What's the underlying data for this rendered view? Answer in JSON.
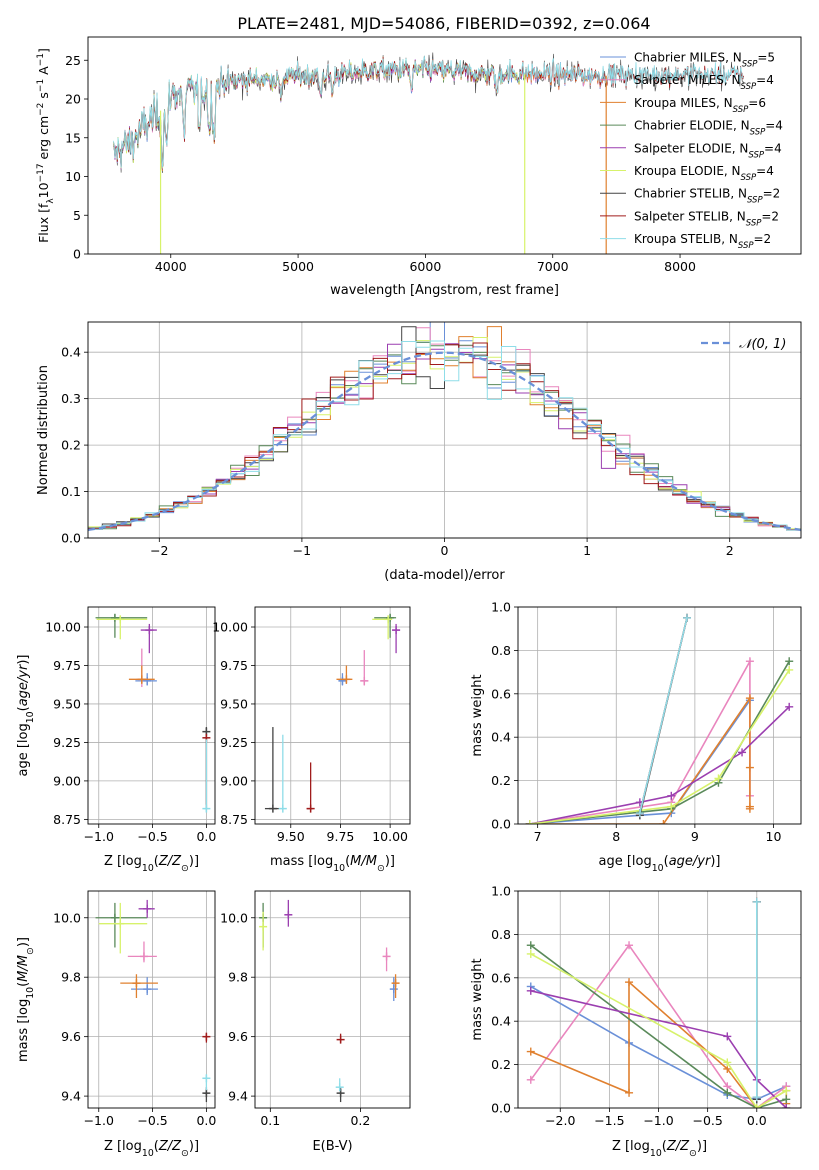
{
  "figure_title": "PLATE=2481, MJD=54086, FIBERID=0392, z=0.064",
  "colors": {
    "chabrier_miles": "#6a90d8",
    "salpeter_miles": "#e986be",
    "kroupa_miles": "#e0802f",
    "chabrier_elodie": "#5a8a5a",
    "salpeter_elodie": "#9b3fb0",
    "kroupa_elodie": "#d7f26b",
    "chabrier_stelib": "#444444",
    "salpeter_stelib": "#a01c1c",
    "kroupa_stelib": "#8fdde8",
    "normal_curve": "#6a90d8",
    "grid": "#b0b0b0"
  },
  "chart_data": [
    {
      "id": "spectrum",
      "type": "line",
      "title": "",
      "xlabel": "wavelength [Angstrom, rest frame]",
      "ylabel": "Flux [f_λ 10^-17 erg cm^-2 s^-1 A^-1]",
      "xlim": [
        3350,
        8950
      ],
      "ylim": [
        0,
        28
      ],
      "xticks": [
        4000,
        5000,
        6000,
        7000,
        8000
      ],
      "yticks": [
        0,
        5,
        10,
        15,
        20,
        25
      ],
      "grid": false,
      "legend_position": "right",
      "legend": [
        {
          "model": "Chabrier MILES",
          "n_ssp": 5,
          "color_key": "chabrier_miles"
        },
        {
          "model": "Salpeter MILES",
          "n_ssp": 4,
          "color_key": "salpeter_miles"
        },
        {
          "model": "Kroupa MILES",
          "n_ssp": 6,
          "color_key": "kroupa_miles"
        },
        {
          "model": "Chabrier ELODIE",
          "n_ssp": 4,
          "color_key": "chabrier_elodie"
        },
        {
          "model": "Salpeter ELODIE",
          "n_ssp": 4,
          "color_key": "salpeter_elodie"
        },
        {
          "model": "Kroupa ELODIE",
          "n_ssp": 4,
          "color_key": "kroupa_elodie"
        },
        {
          "model": "Chabrier STELIB",
          "n_ssp": 2,
          "color_key": "chabrier_stelib"
        },
        {
          "model": "Salpeter STELIB",
          "n_ssp": 2,
          "color_key": "salpeter_stelib"
        },
        {
          "model": "Kroupa STELIB",
          "n_ssp": 2,
          "color_key": "kroupa_stelib"
        }
      ],
      "continuum": {
        "x": [
          3550,
          3600,
          3700,
          3800,
          3900,
          4000,
          4100,
          4200,
          4400,
          4600,
          4800,
          5000,
          5200,
          5500,
          5800,
          6000,
          6200,
          6400,
          6600,
          6800,
          7000,
          7200,
          7400,
          7600,
          7800,
          8000,
          8200,
          8400,
          8600,
          8800
        ],
        "y": [
          12.5,
          13.5,
          14.5,
          16.5,
          18,
          20.5,
          21,
          21,
          22,
          22.5,
          22.5,
          23,
          23,
          23.5,
          23.8,
          23.7,
          23.5,
          23.3,
          23.2,
          23.2,
          23.2,
          23,
          23,
          23,
          23,
          23,
          23,
          23,
          23,
          23
        ]
      },
      "absorption_lines_x": [
        3934,
        3969,
        4102,
        4227,
        4304,
        4340,
        4861,
        5175,
        5270,
        5890,
        6563
      ]
    },
    {
      "id": "residual_hist",
      "type": "histogram",
      "xlabel": "(data-model)/error",
      "ylabel": "Normed distribution",
      "xlim": [
        -2.5,
        2.5
      ],
      "ylim": [
        0,
        0.465
      ],
      "xticks": [
        -2,
        -1,
        0,
        1,
        2
      ],
      "yticks": [
        0.0,
        0.1,
        0.2,
        0.3,
        0.4
      ],
      "grid": true,
      "legend_position": "top-right",
      "normal_label": "𝒩(0, 1)",
      "bin_width": 0.1
    },
    {
      "id": "age_vs_Z",
      "type": "scatter",
      "xlabel": "Z [log10(Z/Z⊙)]",
      "ylabel": "age  [log10(age/yr)]",
      "xlim": [
        -1.1,
        0.08
      ],
      "ylim": [
        8.72,
        10.13
      ],
      "xticks": [
        -1.0,
        -0.5,
        0.0
      ],
      "yticks": [
        8.75,
        9.0,
        9.25,
        9.5,
        9.75,
        10.0
      ],
      "grid": true,
      "points": [
        {
          "m": "chabrier_miles",
          "x": -0.55,
          "y": 9.65,
          "dx": [
            0.11,
            0.09
          ],
          "dy": [
            0.03,
            0.05
          ]
        },
        {
          "m": "salpeter_miles",
          "x": -0.6,
          "y": 9.66,
          "dx": [
            0.05,
            0.05
          ],
          "dy": [
            0.05,
            0.2
          ]
        },
        {
          "m": "kroupa_miles",
          "x": -0.6,
          "y": 9.66,
          "dx": [
            0.12,
            0.12
          ],
          "dy": [
            0.03,
            0.09
          ]
        },
        {
          "m": "chabrier_elodie",
          "x": -0.85,
          "y": 10.06,
          "dx": [
            0.18,
            0.3
          ],
          "dy": [
            0.13,
            0.02
          ]
        },
        {
          "m": "salpeter_elodie",
          "x": -0.53,
          "y": 9.98,
          "dx": [
            0.08,
            0.07
          ],
          "dy": [
            0.15,
            0.04
          ]
        },
        {
          "m": "kroupa_elodie",
          "x": -0.8,
          "y": 10.05,
          "dx": [
            0.22,
            0.25
          ],
          "dy": [
            0.13,
            0.02
          ]
        },
        {
          "m": "chabrier_stelib",
          "x": 0.0,
          "y": 9.32,
          "dx": [
            0,
            0
          ],
          "dy": [
            0.5,
            0.03
          ]
        },
        {
          "m": "salpeter_stelib",
          "x": 0.0,
          "y": 9.28,
          "dx": [
            0,
            0
          ],
          "dy": [
            0.46,
            0.01
          ]
        },
        {
          "m": "kroupa_stelib",
          "x": 0.0,
          "y": 8.82,
          "dx": [
            0.02,
            0.02
          ],
          "dy": [
            0.02,
            0.45
          ]
        }
      ]
    },
    {
      "id": "age_vs_mass",
      "type": "scatter",
      "xlabel": "mass [log10(M/M⊙)]",
      "ylabel": "",
      "xlim": [
        9.32,
        10.1
      ],
      "ylim": [
        8.72,
        10.13
      ],
      "xticks": [
        9.5,
        9.75,
        10.0
      ],
      "yticks": [
        8.75,
        9.0,
        9.25,
        9.5,
        9.75,
        10.0
      ],
      "grid": true,
      "points": [
        {
          "m": "chabrier_miles",
          "x": 9.76,
          "y": 9.65,
          "dx": [
            0.02,
            0.02
          ],
          "dy": [
            0.03,
            0.05
          ]
        },
        {
          "m": "salpeter_miles",
          "x": 9.87,
          "y": 9.65,
          "dx": [
            0.02,
            0.02
          ],
          "dy": [
            0.03,
            0.2
          ]
        },
        {
          "m": "kroupa_miles",
          "x": 9.78,
          "y": 9.66,
          "dx": [
            0.05,
            0.03
          ],
          "dy": [
            0.03,
            0.09
          ]
        },
        {
          "m": "chabrier_elodie",
          "x": 10.0,
          "y": 10.06,
          "dx": [
            0.08,
            0.03
          ],
          "dy": [
            0.13,
            0.02
          ]
        },
        {
          "m": "salpeter_elodie",
          "x": 10.03,
          "y": 9.98,
          "dx": [
            0.02,
            0.02
          ],
          "dy": [
            0.15,
            0.04
          ]
        },
        {
          "m": "kroupa_elodie",
          "x": 9.99,
          "y": 10.05,
          "dx": [
            0.08,
            0.02
          ],
          "dy": [
            0.13,
            0.02
          ]
        },
        {
          "m": "chabrier_stelib",
          "x": 9.41,
          "y": 8.82,
          "dx": [
            0.04,
            0.03
          ],
          "dy": [
            0.01,
            0.53
          ]
        },
        {
          "m": "salpeter_stelib",
          "x": 9.6,
          "y": 8.82,
          "dx": [
            0.02,
            0.01
          ],
          "dy": [
            0.01,
            0.3
          ]
        },
        {
          "m": "kroupa_stelib",
          "x": 9.46,
          "y": 8.82,
          "dx": [
            0,
            0
          ],
          "dy": [
            0.01,
            0.48
          ]
        }
      ]
    },
    {
      "id": "mass_weight_vs_age",
      "type": "line",
      "xlabel": "age  [log10(age/yr)]",
      "ylabel": "mass weight",
      "xlim": [
        6.75,
        10.35
      ],
      "ylim": [
        0,
        1
      ],
      "xticks": [
        7,
        8,
        9,
        10
      ],
      "yticks": [
        0.0,
        0.2,
        0.4,
        0.6,
        0.8,
        1.0
      ],
      "grid": true,
      "series": [
        {
          "m": "chabrier_miles",
          "x": [
            6.9,
            8.3,
            8.7,
            9.7
          ],
          "y": [
            0.0,
            0.04,
            0.05,
            0.57
          ]
        },
        {
          "m": "salpeter_miles",
          "x": [
            6.9,
            8.7,
            9.7,
            9.7
          ],
          "y": [
            0.0,
            0.1,
            0.75,
            0.13
          ]
        },
        {
          "m": "kroupa_miles",
          "x": [
            6.9,
            8.6,
            9.7,
            9.7,
            9.7,
            9.7
          ],
          "y": [
            0.0,
            0.0,
            0.58,
            0.26,
            0.07,
            0.08
          ]
        },
        {
          "m": "chabrier_elodie",
          "x": [
            6.9,
            8.7,
            9.3,
            10.2
          ],
          "y": [
            0.0,
            0.07,
            0.19,
            0.75
          ]
        },
        {
          "m": "salpeter_elodie",
          "x": [
            6.9,
            8.3,
            8.7,
            9.6,
            10.2
          ],
          "y": [
            0.0,
            0.1,
            0.13,
            0.33,
            0.54
          ]
        },
        {
          "m": "kroupa_elodie",
          "x": [
            6.9,
            8.7,
            9.3,
            10.2
          ],
          "y": [
            0.0,
            0.08,
            0.21,
            0.71
          ]
        },
        {
          "m": "chabrier_stelib",
          "x": [
            8.3,
            8.9
          ],
          "y": [
            0.04,
            0.95
          ]
        },
        {
          "m": "salpeter_stelib",
          "x": [
            8.3,
            8.9
          ],
          "y": [
            0.05,
            0.95
          ]
        },
        {
          "m": "kroupa_stelib",
          "x": [
            8.3,
            8.9
          ],
          "y": [
            0.05,
            0.95
          ]
        }
      ]
    },
    {
      "id": "mass_vs_Z",
      "type": "scatter",
      "xlabel": "Z [log10(Z/Z⊙)]",
      "ylabel": "mass [log10(M/M⊙)]",
      "xlim": [
        -1.1,
        0.08
      ],
      "ylim": [
        9.36,
        10.09
      ],
      "xticks": [
        -1.0,
        -0.5,
        0.0
      ],
      "yticks": [
        9.4,
        9.6,
        9.8,
        10.0
      ],
      "grid": true,
      "points": [
        {
          "m": "chabrier_miles",
          "x": -0.55,
          "y": 9.76,
          "dx": [
            0.15,
            0.1
          ],
          "dy": [
            0.02,
            0.04
          ]
        },
        {
          "m": "salpeter_miles",
          "x": -0.58,
          "y": 9.87,
          "dx": [
            0.15,
            0.12
          ],
          "dy": [
            0.02,
            0.05
          ]
        },
        {
          "m": "kroupa_miles",
          "x": -0.65,
          "y": 9.78,
          "dx": [
            0.15,
            0.2
          ],
          "dy": [
            0.05,
            0.03
          ]
        },
        {
          "m": "chabrier_elodie",
          "x": -0.85,
          "y": 10.0,
          "dx": [
            0.18,
            0.3
          ],
          "dy": [
            0.1,
            0.05
          ]
        },
        {
          "m": "salpeter_elodie",
          "x": -0.55,
          "y": 10.03,
          "dx": [
            0.08,
            0.07
          ],
          "dy": [
            0.03,
            0.03
          ]
        },
        {
          "m": "kroupa_elodie",
          "x": -0.8,
          "y": 9.98,
          "dx": [
            0.2,
            0.25
          ],
          "dy": [
            0.1,
            0.07
          ]
        },
        {
          "m": "chabrier_stelib",
          "x": 0.0,
          "y": 9.41,
          "dx": [
            0.02,
            0.02
          ],
          "dy": [
            0.03,
            0.02
          ]
        },
        {
          "m": "salpeter_stelib",
          "x": 0.0,
          "y": 9.6,
          "dx": [
            0.02,
            0.02
          ],
          "dy": [
            0.02,
            0.01
          ]
        },
        {
          "m": "kroupa_stelib",
          "x": 0.0,
          "y": 9.46,
          "dx": [
            0.02,
            0.02
          ],
          "dy": [
            0.04,
            0.01
          ]
        }
      ]
    },
    {
      "id": "mass_vs_ebv",
      "type": "scatter",
      "xlabel": "E(B-V)",
      "ylabel": "",
      "xlim": [
        0.083,
        0.255
      ],
      "ylim": [
        9.36,
        10.09
      ],
      "xticks": [
        0.1,
        0.2
      ],
      "yticks": [
        9.4,
        9.6,
        9.8,
        10.0
      ],
      "grid": true,
      "points": [
        {
          "m": "chabrier_miles",
          "x": 0.237,
          "y": 9.76,
          "dx": [
            0,
            0
          ],
          "dy": [
            0.04,
            0.04
          ]
        },
        {
          "m": "salpeter_miles",
          "x": 0.229,
          "y": 9.87,
          "dx": [
            0,
            0
          ],
          "dy": [
            0.05,
            0.03
          ]
        },
        {
          "m": "kroupa_miles",
          "x": 0.239,
          "y": 9.78,
          "dx": [
            0,
            0
          ],
          "dy": [
            0.05,
            0.03
          ]
        },
        {
          "m": "chabrier_elodie",
          "x": 0.092,
          "y": 10.0,
          "dx": [
            0,
            0
          ],
          "dy": [
            0.1,
            0.05
          ]
        },
        {
          "m": "salpeter_elodie",
          "x": 0.12,
          "y": 10.01,
          "dx": [
            0,
            0
          ],
          "dy": [
            0.04,
            0.05
          ]
        },
        {
          "m": "kroupa_elodie",
          "x": 0.092,
          "y": 9.97,
          "dx": [
            0,
            0
          ],
          "dy": [
            0.08,
            0.05
          ]
        },
        {
          "m": "chabrier_stelib",
          "x": 0.178,
          "y": 9.41,
          "dx": [
            0,
            0
          ],
          "dy": [
            0.03,
            0.02
          ]
        },
        {
          "m": "salpeter_stelib",
          "x": 0.178,
          "y": 9.59,
          "dx": [
            0,
            0
          ],
          "dy": [
            0.01,
            0.02
          ]
        },
        {
          "m": "kroupa_stelib",
          "x": 0.177,
          "y": 9.43,
          "dx": [
            0,
            0
          ],
          "dy": [
            0.01,
            0.03
          ]
        }
      ]
    },
    {
      "id": "mass_weight_vs_Z",
      "type": "line",
      "xlabel": "Z [log10(Z/Z⊙)]",
      "ylabel": "mass weight",
      "xlim": [
        -2.43,
        0.45
      ],
      "ylim": [
        0,
        1
      ],
      "xticks": [
        -2.0,
        -1.5,
        -1.0,
        -0.5,
        0.0
      ],
      "yticks": [
        0.0,
        0.2,
        0.4,
        0.6,
        0.8,
        1.0
      ],
      "grid": true,
      "series": [
        {
          "m": "chabrier_miles",
          "x": [
            -2.3,
            -1.3,
            -0.3,
            0.0,
            0.3
          ],
          "y": [
            0.56,
            0.3,
            0.06,
            0.04,
            0.1
          ]
        },
        {
          "m": "salpeter_miles",
          "x": [
            -2.3,
            -1.3,
            -0.3,
            0.0,
            0.3
          ],
          "y": [
            0.13,
            0.75,
            0.1,
            0.0,
            0.1
          ]
        },
        {
          "m": "kroupa_miles",
          "x": [
            -2.3,
            -1.3,
            -1.3,
            -0.3,
            0.0,
            0.3,
            0.3
          ],
          "y": [
            0.26,
            0.07,
            0.58,
            0.18,
            0.0,
            0.08,
            0.02
          ]
        },
        {
          "m": "chabrier_elodie",
          "x": [
            -2.3,
            -0.3,
            0.0,
            0.3
          ],
          "y": [
            0.75,
            0.07,
            0.0,
            0.04
          ]
        },
        {
          "m": "salpeter_elodie",
          "x": [
            -2.3,
            -0.3,
            0.0,
            0.3
          ],
          "y": [
            0.54,
            0.33,
            0.13,
            0.0
          ]
        },
        {
          "m": "kroupa_elodie",
          "x": [
            -2.3,
            -0.3,
            0.0,
            0.3
          ],
          "y": [
            0.71,
            0.21,
            0.0,
            0.08
          ]
        },
        {
          "m": "chabrier_stelib",
          "x": [
            0.0,
            0.0
          ],
          "y": [
            0.04,
            0.95
          ]
        },
        {
          "m": "salpeter_stelib",
          "x": [
            0.0,
            0.0
          ],
          "y": [
            0.05,
            0.95
          ]
        },
        {
          "m": "kroupa_stelib",
          "x": [
            0.0,
            0.0
          ],
          "y": [
            0.05,
            0.95
          ]
        }
      ]
    }
  ]
}
